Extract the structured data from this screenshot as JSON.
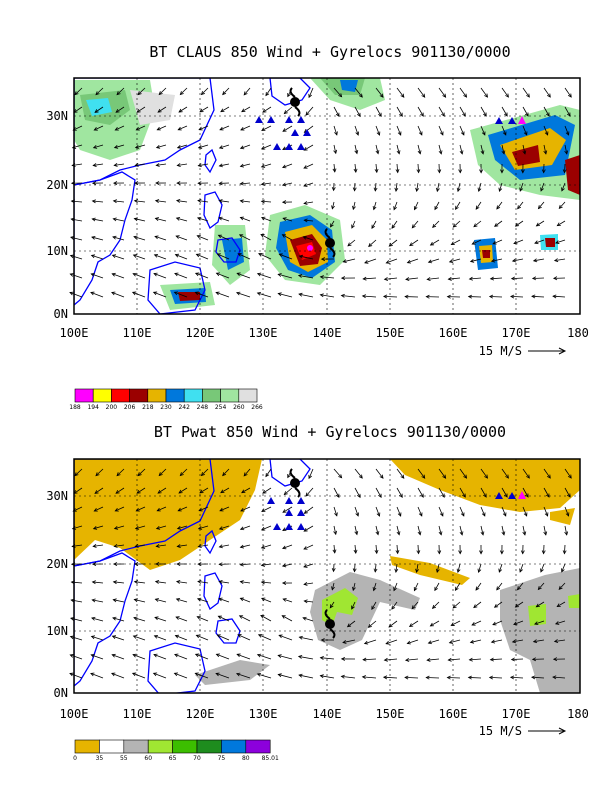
{
  "top_panel": {
    "title": "BT CLAUS 850 Wind + Gyrelocs 901130/0000",
    "lat_labels": [
      "0N",
      "10N",
      "20N",
      "30N"
    ],
    "lon_labels": [
      "100E",
      "110E",
      "120E",
      "130E",
      "140E",
      "150E",
      "160E",
      "170E",
      "180"
    ],
    "vector_ref": "15 M/S",
    "colorbar": {
      "labels": [
        "188",
        "194",
        "200",
        "206",
        "218",
        "230",
        "242",
        "248",
        "254",
        "260",
        "266"
      ],
      "colors": [
        "#ff00ff",
        "#ffff00",
        "#ff0000",
        "#9b0000",
        "#e6b400",
        "#0078dc",
        "#40e0f0",
        "#78c878",
        "#a0e6a0",
        "#e0e0e0"
      ]
    }
  },
  "bottom_panel": {
    "title": "BT Pwat 850 Wind + Gyrelocs 901130/0000",
    "lat_labels": [
      "0N",
      "10N",
      "20N",
      "30N"
    ],
    "lon_labels": [
      "100E",
      "110E",
      "120E",
      "130E",
      "140E",
      "150E",
      "160E",
      "170E",
      "180"
    ],
    "vector_ref": "15 M/S",
    "colorbar": {
      "labels": [
        "0",
        "35",
        "55",
        "60",
        "65",
        "70",
        "75",
        "80",
        "85.01"
      ],
      "colors": [
        "#e6b400",
        "#ffffff",
        "#b4b4b4",
        "#a0e632",
        "#3cbe00",
        "#1e8c1e",
        "#0078dc",
        "#8c00dc"
      ]
    }
  },
  "map_style": {
    "coastline_color": "#0000ff",
    "gyre_marker_color": "#0000cc",
    "storm_symbol_color": "#000000",
    "highlight_marker_color": "#ff00ff"
  }
}
